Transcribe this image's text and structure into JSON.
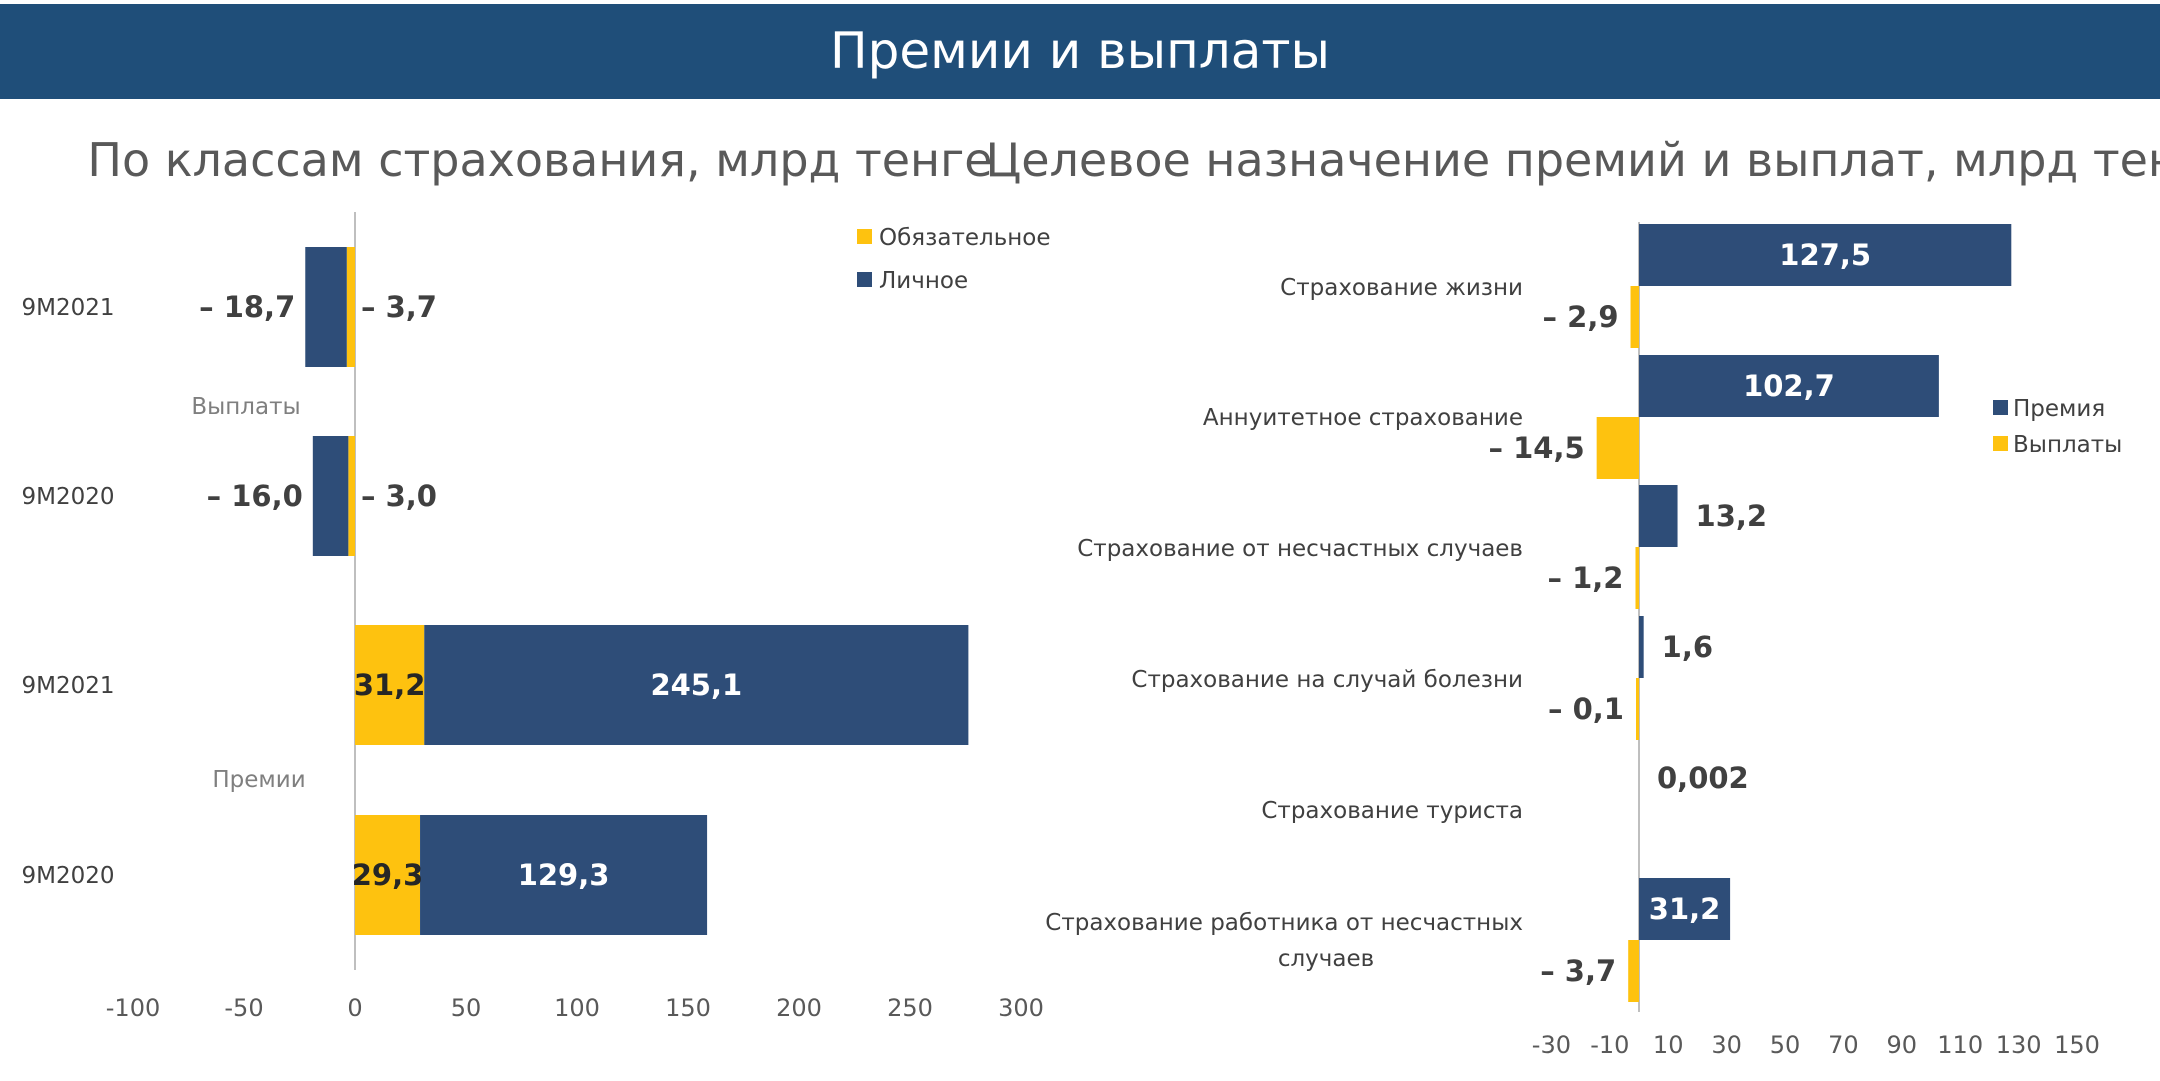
{
  "banner": {
    "title": "Премии и выплаты"
  },
  "colors": {
    "banner": "#1f4e79",
    "navy": "#2e4d78",
    "yellow": "#fec20f",
    "axis": "#bfbfbf"
  },
  "chart_data": [
    {
      "type": "bar",
      "orientation": "horizontal",
      "stacked": true,
      "title": "По классам страхования, млрд тенге",
      "xlim": [
        -100,
        300
      ],
      "ticks": [
        "-100",
        "-50",
        "0",
        "50",
        "100",
        "150",
        "200",
        "250",
        "300"
      ],
      "legend_position": "top-right",
      "legend": [
        "Обязательное",
        "Личное"
      ],
      "groups": [
        {
          "name": "Выплаты",
          "categories": [
            "9M2021",
            "9M2020"
          ]
        },
        {
          "name": "Премии",
          "categories": [
            "9M2021",
            "9M2020"
          ]
        }
      ],
      "categories": [
        "9M2021",
        "9M2020",
        "9M2021",
        "9M2020"
      ],
      "series": [
        {
          "name": "Обязательное",
          "color": "#fec20f",
          "values": [
            -3.7,
            -3.0,
            31.2,
            29.3
          ],
          "labels": [
            "– 3,7",
            "– 3,0",
            "31,2",
            "29,3"
          ]
        },
        {
          "name": "Личное",
          "color": "#2e4d78",
          "values": [
            -18.7,
            -16.0,
            245.1,
            129.3
          ],
          "labels": [
            "– 18,7",
            "– 16,0",
            "245,1",
            "129,3"
          ]
        }
      ]
    },
    {
      "type": "bar",
      "orientation": "horizontal",
      "stacked": false,
      "title": "Целевое назначение премий и выплат, млрд тенге",
      "xlim": [
        -30,
        150
      ],
      "ticks": [
        "-30",
        "-10",
        "10",
        "30",
        "50",
        "70",
        "90",
        "110",
        "130",
        "150"
      ],
      "legend_position": "right",
      "legend": [
        "Премия",
        "Выплаты"
      ],
      "categories": [
        "Страхование жизни",
        "Аннуитетное страхование",
        "Страхование от несчастных случаев",
        "Страхование на случай болезни",
        "Страхование туриста",
        "Страхование работника от несчастных случаев"
      ],
      "category_lines": [
        [
          "Страхование жизни"
        ],
        [
          "Аннуитетное страхование"
        ],
        [
          "Страхование от несчастных случаев"
        ],
        [
          "Страхование на случай болезни"
        ],
        [
          "Страхование туриста"
        ],
        [
          "Страхование работника от несчастных",
          "случаев"
        ]
      ],
      "series": [
        {
          "name": "Премия",
          "color": "#2e4d78",
          "values": [
            127.5,
            102.7,
            13.2,
            1.6,
            0.002,
            31.2
          ],
          "labels": [
            "127,5",
            "102,7",
            "13,2",
            "1,6",
            "0,002",
            "31,2"
          ]
        },
        {
          "name": "Выплаты",
          "color": "#fec20f",
          "values": [
            -2.9,
            -14.5,
            -1.2,
            -0.1,
            0,
            -3.7
          ],
          "labels": [
            "– 2,9",
            "– 14,5",
            "– 1,2",
            "– 0,1",
            "",
            "– 3,7"
          ]
        }
      ]
    }
  ]
}
